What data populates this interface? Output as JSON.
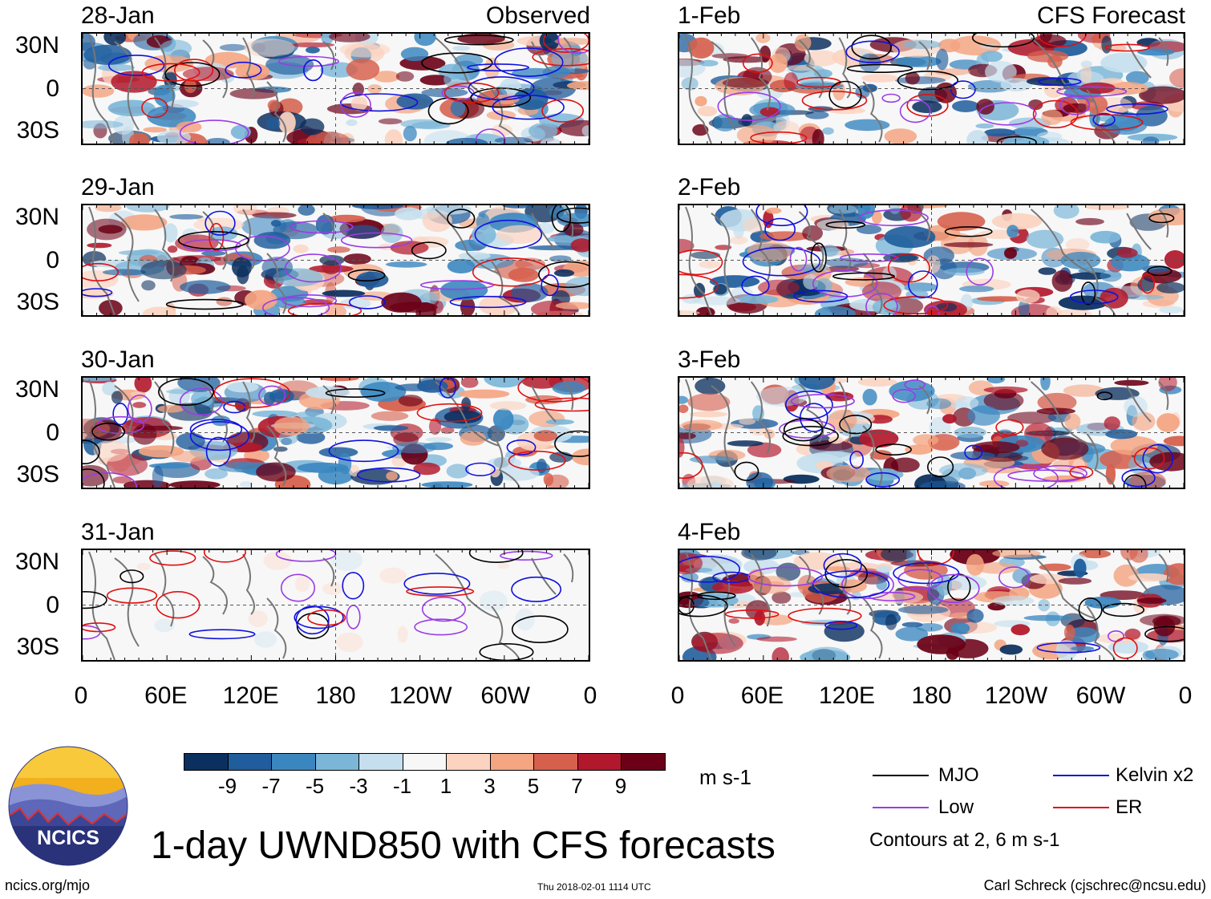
{
  "chart_data": {
    "type": "heatmap",
    "title": "1-day UWND850 with CFS forecasts",
    "variable": "850-hPa zonal wind anomaly",
    "units": "m s-1",
    "lat_ticks": [
      "30N",
      "0",
      "30S"
    ],
    "lon_ticks": [
      "0",
      "60E",
      "120E",
      "180",
      "120W",
      "60W",
      "0"
    ],
    "colorbar": {
      "ticks": [
        "-9",
        "-7",
        "-5",
        "-3",
        "-1",
        "1",
        "3",
        "5",
        "7",
        "9"
      ],
      "colors": [
        "#0b2f5e",
        "#1f5d9c",
        "#3a87c0",
        "#7bb6d8",
        "#c5dfee",
        "#f7f7f7",
        "#fbd3c0",
        "#f4a582",
        "#d6604d",
        "#b2182b",
        "#6b0016"
      ]
    },
    "contour_legend": [
      {
        "label": "MJO",
        "color": "#000000"
      },
      {
        "label": "Kelvin x2",
        "color": "#1010e0"
      },
      {
        "label": "Low",
        "color": "#9a3ce6"
      },
      {
        "label": "ER",
        "color": "#e01010"
      }
    ],
    "contour_note": "Contours at 2, 6 m s-1",
    "panels": [
      {
        "date": "28-Jan",
        "label": "Observed",
        "kind": "obs"
      },
      {
        "date": "29-Jan",
        "label": "",
        "kind": "obs"
      },
      {
        "date": "30-Jan",
        "label": "",
        "kind": "obs"
      },
      {
        "date": "31-Jan",
        "label": "",
        "kind": "obs-partial"
      },
      {
        "date": "1-Feb",
        "label": "CFS Forecast",
        "kind": "fcst"
      },
      {
        "date": "2-Feb",
        "label": "",
        "kind": "fcst"
      },
      {
        "date": "3-Feb",
        "label": "",
        "kind": "fcst"
      },
      {
        "date": "4-Feb",
        "label": "",
        "kind": "fcst"
      }
    ]
  },
  "footer": {
    "logo_text": "NCICS",
    "site": "ncics.org/mjo",
    "timestamp": "Thu 2018-02-01 1114 UTC",
    "author": "Carl Schreck (cjschrec@ncsu.edu)"
  }
}
